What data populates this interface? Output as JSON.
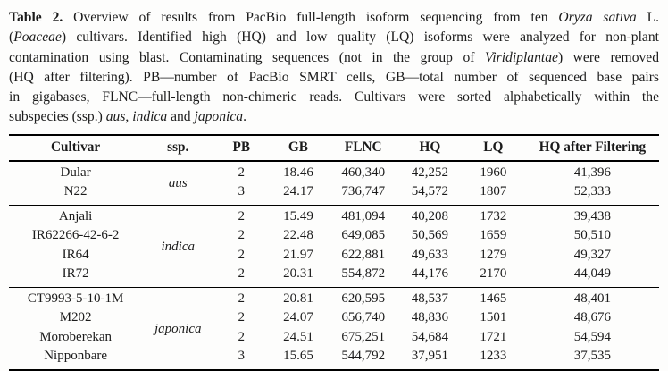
{
  "colors": {
    "ink": "#1b1b1b",
    "rule": "#000000",
    "background": "#fdfdfc"
  },
  "caption": {
    "full_text": "Table 2. Overview of results from PacBio full-length isoform sequencing from ten Oryza sativa L. (Poaceae) cultivars. Identified high (HQ) and low quality (LQ) isoforms were analyzed for non-plant contamination using blast. Contaminating sequences (not in the group of Viridiplantae) were removed (HQ after filtering). PB—number of PacBio SMRT cells, GB—total number of sequenced base pairs in gigabases, FLNC—full-length non-chimeric reads. Cultivars were sorted alphabetically within the subspecies (ssp.) aus, indica and japonica.",
    "lines": [
      [
        {
          "t": "Table 2.",
          "b": true
        },
        {
          "t": "  Overview of results from PacBio full-length isoform sequencing from ten "
        },
        {
          "t": "Oryza sativa",
          "i": true
        },
        {
          "t": " L."
        }
      ],
      [
        {
          "t": "("
        },
        {
          "t": "Poaceae",
          "i": true
        },
        {
          "t": ") cultivars. Identified high (HQ) and low quality (LQ) isoforms were analyzed for non-plant"
        }
      ],
      [
        {
          "t": "contamination using blast. Contaminating sequences (not in the group of "
        },
        {
          "t": "Viridiplantae",
          "i": true
        },
        {
          "t": ") were removed"
        }
      ],
      [
        {
          "t": "(HQ after filtering).  PB—number of PacBio SMRT cells, GB—total number of sequenced base pairs"
        }
      ],
      [
        {
          "t": "in gigabases, FLNC—full-length non-chimeric reads.  Cultivars were sorted alphabetically within the"
        }
      ],
      [
        {
          "t": "subspecies (ssp.) "
        },
        {
          "t": "aus",
          "i": true
        },
        {
          "t": ", "
        },
        {
          "t": "indica",
          "i": true
        },
        {
          "t": " and "
        },
        {
          "t": "japonica",
          "i": true
        },
        {
          "t": "."
        }
      ]
    ]
  },
  "table": {
    "columns": [
      "Cultivar",
      "ssp.",
      "PB",
      "GB",
      "FLNC",
      "HQ",
      "LQ",
      "HQ after Filtering"
    ],
    "groups": [
      {
        "ssp": "aus",
        "rows": [
          {
            "cultivar": "Dular",
            "pb": "2",
            "gb": "18.46",
            "flnc": "460,340",
            "hq": "42,252",
            "lq": "1960",
            "hq_after_filtering": "41,396"
          },
          {
            "cultivar": "N22",
            "pb": "3",
            "gb": "24.17",
            "flnc": "736,747",
            "hq": "54,572",
            "lq": "1807",
            "hq_after_filtering": "52,333"
          }
        ]
      },
      {
        "ssp": "indica",
        "rows": [
          {
            "cultivar": "Anjali",
            "pb": "2",
            "gb": "15.49",
            "flnc": "481,094",
            "hq": "40,208",
            "lq": "1732",
            "hq_after_filtering": "39,438"
          },
          {
            "cultivar": "IR62266-42-6-2",
            "pb": "2",
            "gb": "22.48",
            "flnc": "649,085",
            "hq": "50,569",
            "lq": "1659",
            "hq_after_filtering": "50,510"
          },
          {
            "cultivar": "IR64",
            "pb": "2",
            "gb": "21.97",
            "flnc": "622,881",
            "hq": "49,633",
            "lq": "1279",
            "hq_after_filtering": "49,327"
          },
          {
            "cultivar": "IR72",
            "pb": "2",
            "gb": "20.31",
            "flnc": "554,872",
            "hq": "44,176",
            "lq": "2170",
            "hq_after_filtering": "44,049"
          }
        ]
      },
      {
        "ssp": "japonica",
        "rows": [
          {
            "cultivar": "CT9993-5-10-1M",
            "pb": "2",
            "gb": "20.81",
            "flnc": "620,595",
            "hq": "48,537",
            "lq": "1465",
            "hq_after_filtering": "48,401"
          },
          {
            "cultivar": "M202",
            "pb": "2",
            "gb": "24.07",
            "flnc": "656,740",
            "hq": "48,836",
            "lq": "1501",
            "hq_after_filtering": "48,676"
          },
          {
            "cultivar": "Moroberekan",
            "pb": "2",
            "gb": "24.51",
            "flnc": "675,251",
            "hq": "54,684",
            "lq": "1721",
            "hq_after_filtering": "54,594"
          },
          {
            "cultivar": "Nipponbare",
            "pb": "3",
            "gb": "15.65",
            "flnc": "544,792",
            "hq": "37,951",
            "lq": "1233",
            "hq_after_filtering": "37,535"
          }
        ]
      }
    ]
  }
}
